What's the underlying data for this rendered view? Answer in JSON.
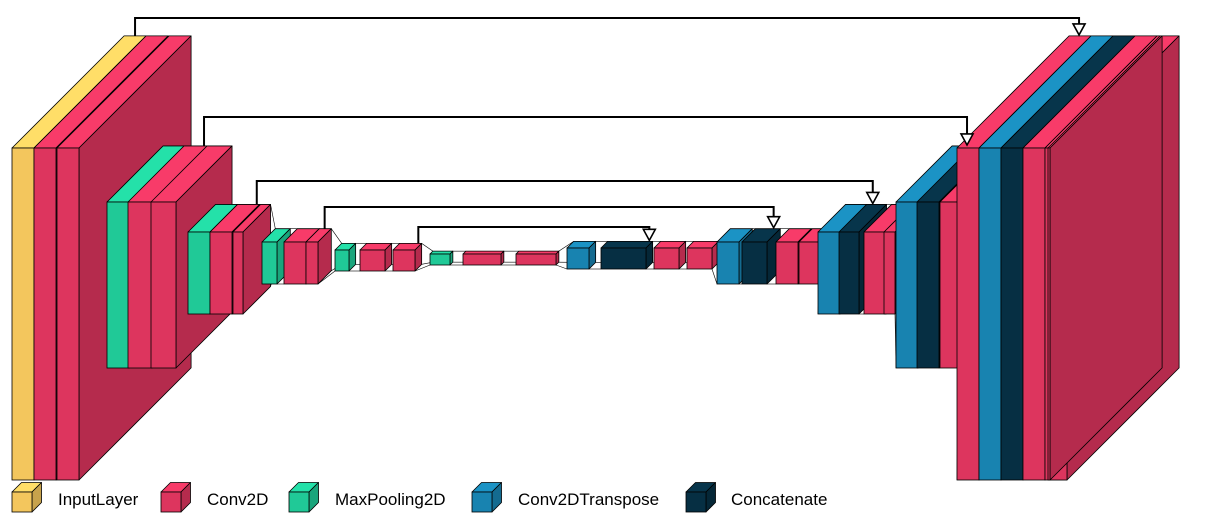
{
  "colors": {
    "InputLayer": "#F3C65D",
    "Conv2D": "#DD355E",
    "MaxPooling2D": "#20C997",
    "Conv2DTranspose": "#1883B0",
    "Concatenate": "#062F43"
  },
  "legend": [
    {
      "type": "InputLayer",
      "label": "InputLayer"
    },
    {
      "type": "Conv2D",
      "label": "Conv2D"
    },
    {
      "type": "MaxPooling2D",
      "label": "MaxPooling2D"
    },
    {
      "type": "Conv2DTranspose",
      "label": "Conv2DTranspose"
    },
    {
      "type": "Concatenate",
      "label": "Concatenate"
    }
  ],
  "layers": [
    {
      "type": "InputLayer"
    },
    {
      "type": "Conv2D"
    },
    {
      "type": "Conv2D"
    },
    {
      "type": "MaxPooling2D"
    },
    {
      "type": "Conv2D"
    },
    {
      "type": "Conv2D"
    },
    {
      "type": "MaxPooling2D"
    },
    {
      "type": "Conv2D"
    },
    {
      "type": "Conv2D"
    },
    {
      "type": "MaxPooling2D"
    },
    {
      "type": "Conv2D"
    },
    {
      "type": "Conv2D"
    },
    {
      "type": "MaxPooling2D"
    },
    {
      "type": "Conv2D"
    },
    {
      "type": "Conv2D"
    },
    {
      "type": "MaxPooling2D"
    },
    {
      "type": "Conv2D"
    },
    {
      "type": "Conv2D"
    },
    {
      "type": "Conv2DTranspose"
    },
    {
      "type": "Concatenate"
    },
    {
      "type": "Conv2D"
    },
    {
      "type": "Conv2D"
    },
    {
      "type": "Conv2DTranspose"
    },
    {
      "type": "Concatenate"
    },
    {
      "type": "Conv2D"
    },
    {
      "type": "Conv2D"
    },
    {
      "type": "Conv2DTranspose"
    },
    {
      "type": "Concatenate"
    },
    {
      "type": "Conv2D"
    },
    {
      "type": "Conv2D"
    },
    {
      "type": "Conv2DTranspose"
    },
    {
      "type": "Concatenate"
    },
    {
      "type": "Conv2D"
    },
    {
      "type": "Conv2D"
    },
    {
      "type": "Conv2DTranspose"
    },
    {
      "type": "Concatenate"
    },
    {
      "type": "Conv2D"
    },
    {
      "type": "Conv2D"
    },
    {
      "type": "Conv2D"
    }
  ],
  "skip_connections": [
    {
      "from": 2,
      "to": 35
    },
    {
      "from": 5,
      "to": 31
    },
    {
      "from": 8,
      "to": 27
    },
    {
      "from": 11,
      "to": 23
    },
    {
      "from": 14,
      "to": 19
    }
  ]
}
